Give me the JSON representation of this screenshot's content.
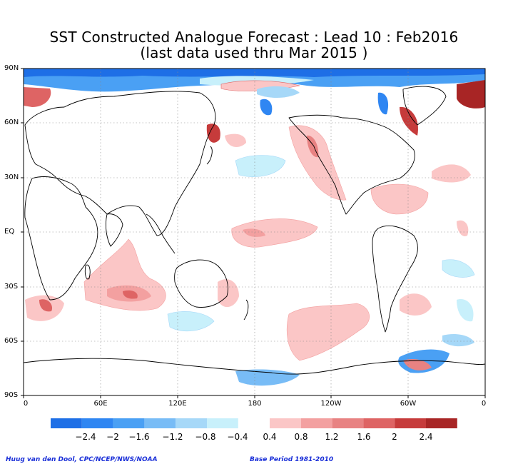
{
  "title_line1": "SST Constructed Analogue Forecast : Lead 10 : Feb2016",
  "title_line2": "(last data used thru Mar 2015 )",
  "lat_labels": [
    "90N",
    "60N",
    "30N",
    "EQ",
    "30S",
    "60S",
    "90S"
  ],
  "lon_labels": [
    "0",
    "60E",
    "120E",
    "180",
    "120W",
    "60W",
    "0"
  ],
  "colorbar": {
    "labels": [
      "−2.4",
      "−2",
      "−1.6",
      "−1.2",
      "−0.8",
      "−0.4",
      "0.4",
      "0.8",
      "1.2",
      "1.6",
      "2",
      "2.4"
    ],
    "neg_colors": [
      "#1e6fe6",
      "#2f86f2",
      "#4aa0f4",
      "#78bcf6",
      "#a6d8f8",
      "#c8f0fb"
    ],
    "pos_colors": [
      "#fbc6c6",
      "#f3a0a0",
      "#e88282",
      "#de6464",
      "#c63b3b",
      "#a82525"
    ]
  },
  "footer_left": "Huug van den Dool, CPC/NCEP/NWS/NOAA",
  "footer_right": "Base Period 1981-2010"
}
